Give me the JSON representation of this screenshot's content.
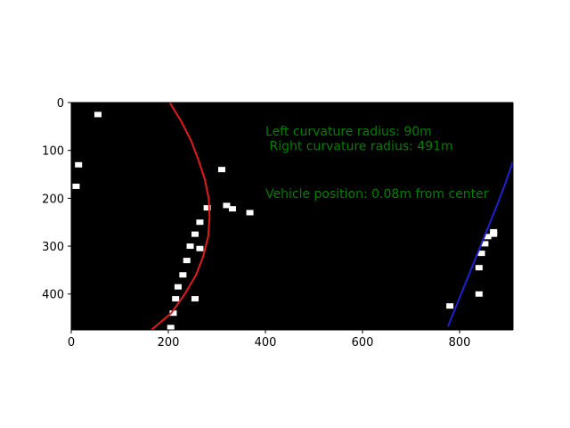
{
  "chart_data": {
    "type": "image-with-line-overlay",
    "title": "",
    "xlabel": "",
    "ylabel": "",
    "xlim": [
      0,
      910
    ],
    "ylim": [
      475,
      0
    ],
    "x_ticks": [
      0,
      200,
      400,
      600,
      800
    ],
    "y_ticks": [
      0,
      100,
      200,
      300,
      400
    ],
    "background_color": "#000000",
    "series": [
      {
        "name": "left-lane-fit",
        "color": "#e41a1c",
        "points": [
          [
            203,
            0
          ],
          [
            227,
            40
          ],
          [
            247,
            80
          ],
          [
            262,
            120
          ],
          [
            275,
            160
          ],
          [
            283,
            200
          ],
          [
            285,
            240
          ],
          [
            282,
            280
          ],
          [
            272,
            320
          ],
          [
            257,
            360
          ],
          [
            234,
            400
          ],
          [
            206,
            440
          ],
          [
            165,
            475
          ]
        ]
      },
      {
        "name": "right-lane-fit",
        "color": "#1f1fd2",
        "points": [
          [
            910,
            123
          ],
          [
            892,
            175
          ],
          [
            873,
            225
          ],
          [
            853,
            275
          ],
          [
            835,
            320
          ],
          [
            817,
            365
          ],
          [
            800,
            408
          ],
          [
            783,
            450
          ],
          [
            776,
            468
          ]
        ]
      }
    ],
    "lane_pixels": [
      {
        "name": "left-lane-pixels",
        "points": [
          [
            205,
            470
          ],
          [
            210,
            440
          ],
          [
            215,
            410
          ],
          [
            220,
            385
          ],
          [
            230,
            360
          ],
          [
            238,
            330
          ],
          [
            245,
            300
          ],
          [
            255,
            275
          ],
          [
            265,
            250
          ],
          [
            280,
            220
          ]
        ]
      },
      {
        "name": "right-lane-pixels",
        "points": [
          [
            840,
            345
          ],
          [
            845,
            315
          ],
          [
            852,
            295
          ],
          [
            858,
            280
          ],
          [
            870,
            270
          ]
        ]
      },
      {
        "name": "noise-pixels",
        "points": [
          [
            55,
            25
          ],
          [
            15,
            130
          ],
          [
            10,
            175
          ],
          [
            310,
            140
          ],
          [
            332,
            222
          ],
          [
            368,
            230
          ],
          [
            320,
            215
          ],
          [
            265,
            305
          ],
          [
            255,
            410
          ],
          [
            780,
            425
          ],
          [
            840,
            400
          ],
          [
            870,
            275
          ]
        ]
      }
    ],
    "annotations": [
      {
        "text": "Left curvature radius: 90m",
        "x": 400,
        "y": 60,
        "color": "#008000"
      },
      {
        "text": " Right curvature radius: 491m",
        "x": 400,
        "y": 90,
        "color": "#008000"
      },
      {
        "text": "Vehicle position: 0.08m from center",
        "x": 400,
        "y": 190,
        "color": "#008000"
      }
    ]
  }
}
